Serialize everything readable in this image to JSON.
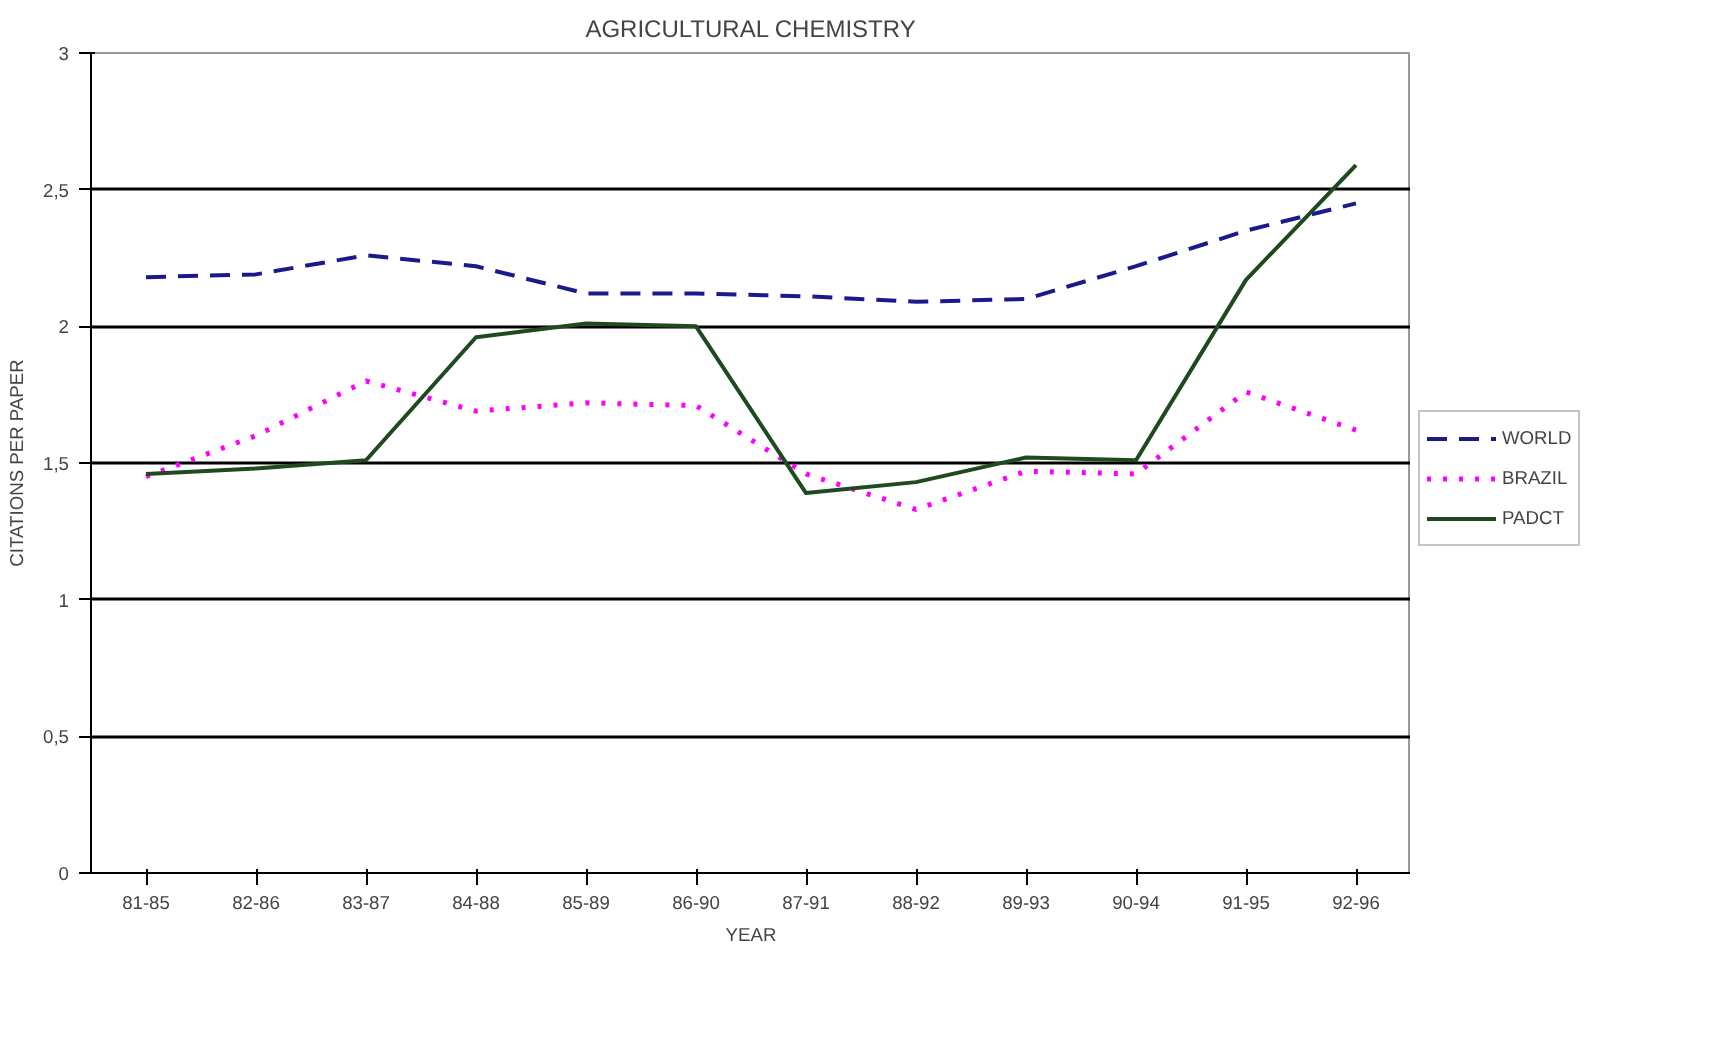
{
  "chart_data": {
    "type": "line",
    "title": "AGRICULTURAL CHEMISTRY",
    "xlabel": "YEAR",
    "ylabel": "CITATIONS PER PAPER",
    "categories": [
      "81-85",
      "82-86",
      "83-87",
      "84-88",
      "85-89",
      "86-90",
      "87-91",
      "88-92",
      "89-93",
      "90-94",
      "91-95",
      "92-96"
    ],
    "series": [
      {
        "name": "WORLD",
        "color": "#1a1a8c",
        "line_style": "dashed",
        "values": [
          2.18,
          2.19,
          2.26,
          2.22,
          2.12,
          2.12,
          2.11,
          2.09,
          2.1,
          2.22,
          2.35,
          2.45
        ]
      },
      {
        "name": "BRAZIL",
        "color": "#ff00ff",
        "line_style": "dotted",
        "values": [
          1.45,
          1.6,
          1.8,
          1.69,
          1.72,
          1.71,
          1.46,
          1.33,
          1.47,
          1.46,
          1.76,
          1.62
        ]
      },
      {
        "name": "PADCT",
        "color": "#1f4a1f",
        "line_style": "solid",
        "values": [
          1.46,
          1.48,
          1.51,
          1.96,
          2.01,
          2.0,
          1.39,
          1.43,
          1.52,
          1.51,
          2.17,
          2.59
        ]
      }
    ],
    "ylim": [
      0,
      3
    ],
    "yticks": [
      0,
      {
        "value": 0.5,
        "label": "0,5"
      },
      1,
      {
        "value": 1.5,
        "label": "1,5"
      },
      2,
      {
        "value": 2.5,
        "label": "2,5"
      },
      3
    ],
    "grid": "y",
    "legend": "right",
    "marker": "none"
  }
}
